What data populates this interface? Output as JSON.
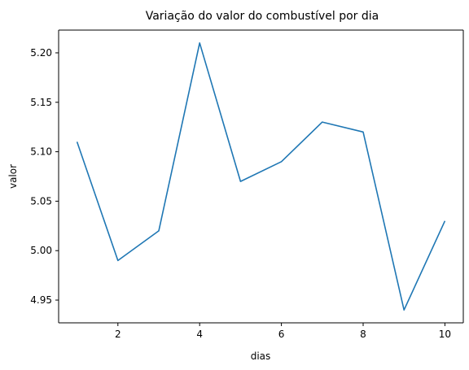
{
  "chart_data": {
    "type": "line",
    "title": "Variação do valor do combustível por dia",
    "xlabel": "dias",
    "ylabel": "valor",
    "xlim": [
      0.55,
      10.45
    ],
    "ylim": [
      4.927,
      5.223
    ],
    "xticks": [
      2,
      4,
      6,
      8,
      10
    ],
    "xtick_labels": [
      "2",
      "4",
      "6",
      "8",
      "10"
    ],
    "yticks": [
      4.95,
      5.0,
      5.05,
      5.1,
      5.15,
      5.2
    ],
    "ytick_labels": [
      "4.95",
      "5.00",
      "5.05",
      "5.10",
      "5.15",
      "5.20"
    ],
    "grid": false,
    "series": [
      {
        "color": "#1f77b4",
        "x": [
          1,
          2,
          3,
          4,
          5,
          6,
          7,
          8,
          9,
          10
        ],
        "y": [
          5.11,
          4.99,
          5.02,
          5.21,
          5.07,
          5.09,
          5.13,
          5.12,
          4.94,
          5.03
        ]
      }
    ]
  }
}
